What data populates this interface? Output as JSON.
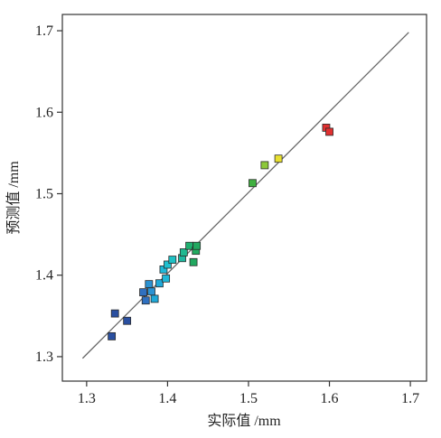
{
  "chart_data": {
    "type": "scatter",
    "title": "",
    "xlabel": "实际值 /mm",
    "ylabel": "预测值 /mm",
    "xlim": [
      1.27,
      1.72
    ],
    "ylim": [
      1.27,
      1.72
    ],
    "xticks": [
      "1.3",
      "1.4",
      "1.5",
      "1.6",
      "1.7"
    ],
    "yticks": [
      "1.3",
      "1.4",
      "1.5",
      "1.6",
      "1.7"
    ],
    "grid": false,
    "reference_line": {
      "x": [
        1.295,
        1.698
      ],
      "y": [
        1.298,
        1.698
      ],
      "color": "#666666"
    },
    "points": [
      {
        "x": 1.331,
        "y": 1.325,
        "color": "#2a4fa0"
      },
      {
        "x": 1.335,
        "y": 1.353,
        "color": "#2a4fa0"
      },
      {
        "x": 1.35,
        "y": 1.344,
        "color": "#2a4fa0"
      },
      {
        "x": 1.37,
        "y": 1.379,
        "color": "#2f70c0"
      },
      {
        "x": 1.373,
        "y": 1.369,
        "color": "#2f70c0"
      },
      {
        "x": 1.377,
        "y": 1.389,
        "color": "#2a92d2"
      },
      {
        "x": 1.38,
        "y": 1.38,
        "color": "#2a92d2"
      },
      {
        "x": 1.384,
        "y": 1.371,
        "color": "#1fa8d8"
      },
      {
        "x": 1.39,
        "y": 1.39,
        "color": "#1fa8d8"
      },
      {
        "x": 1.395,
        "y": 1.407,
        "color": "#1fb8d8"
      },
      {
        "x": 1.398,
        "y": 1.396,
        "color": "#1fb8d8"
      },
      {
        "x": 1.4,
        "y": 1.413,
        "color": "#1fc0d0"
      },
      {
        "x": 1.406,
        "y": 1.419,
        "color": "#1fc0c4"
      },
      {
        "x": 1.418,
        "y": 1.421,
        "color": "#1fb8a0"
      },
      {
        "x": 1.42,
        "y": 1.428,
        "color": "#1fb890"
      },
      {
        "x": 1.427,
        "y": 1.436,
        "color": "#1fb070"
      },
      {
        "x": 1.432,
        "y": 1.416,
        "color": "#22a860"
      },
      {
        "x": 1.435,
        "y": 1.43,
        "color": "#22ac60"
      },
      {
        "x": 1.436,
        "y": 1.436,
        "color": "#22a860"
      },
      {
        "x": 1.505,
        "y": 1.513,
        "color": "#40b040"
      },
      {
        "x": 1.52,
        "y": 1.535,
        "color": "#8cc83a"
      },
      {
        "x": 1.537,
        "y": 1.543,
        "color": "#e8e030"
      },
      {
        "x": 1.596,
        "y": 1.581,
        "color": "#e03030"
      },
      {
        "x": 1.6,
        "y": 1.576,
        "color": "#e03030"
      }
    ]
  }
}
